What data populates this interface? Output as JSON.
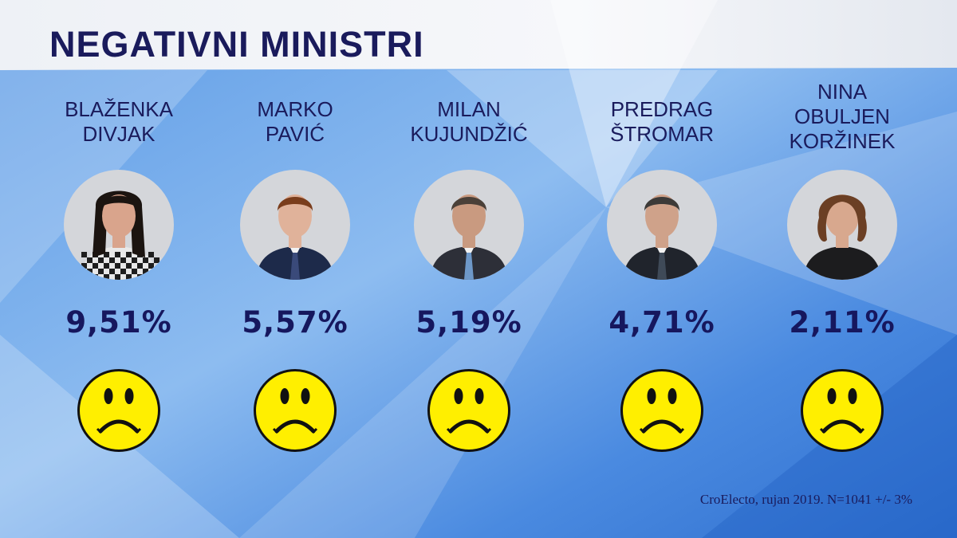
{
  "title": "NEGATIVNI MINISTRI",
  "source": "CroElecto, rujan 2019. N=1041 +/- 3%",
  "colors": {
    "title": "#1a1b5c",
    "value": "#16175e",
    "smiley": "#ffef00",
    "background": "#3d7fd6"
  },
  "chart_data": {
    "type": "table",
    "categories": [
      "BLAŽENKA DIVJAK",
      "MARKO PAVIĆ",
      "MILAN KUJUNDŽIĆ",
      "PREDRAG ŠTROMAR",
      "NINA OBULJEN KORŽINEK"
    ],
    "values": [
      9.51,
      5.57,
      5.19,
      4.71,
      2.11
    ],
    "title": "NEGATIVNI MINISTRI"
  },
  "ministers": [
    {
      "name": "BLAŽENKA\nDIVJAK",
      "value": "9,51%",
      "icon": "sad-face-icon"
    },
    {
      "name": "MARKO\nPAVIĆ",
      "value": "5,57%",
      "icon": "sad-face-icon"
    },
    {
      "name": "MILAN\nKUJUNDŽIĆ",
      "value": "5,19%",
      "icon": "sad-face-icon"
    },
    {
      "name": "PREDRAG\nŠTROMAR",
      "value": "4,71%",
      "icon": "sad-face-icon"
    },
    {
      "name": "NINA\nOBULJEN\nKORŽINEK",
      "value": "2,11%",
      "icon": "sad-face-icon"
    }
  ]
}
